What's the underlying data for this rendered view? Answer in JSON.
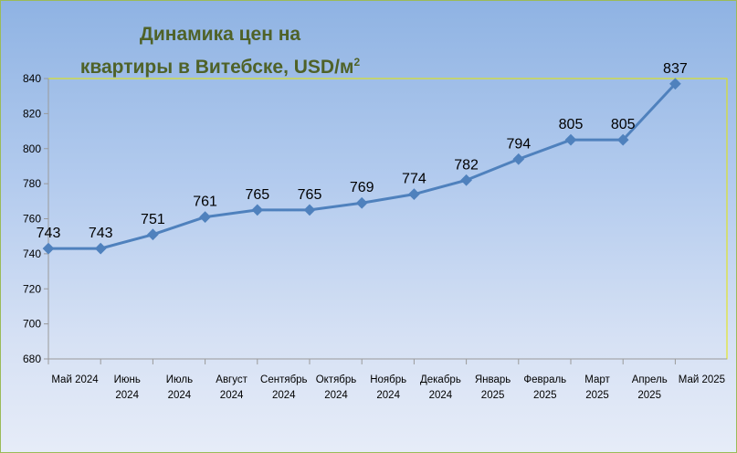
{
  "chart_data": {
    "type": "line",
    "title_line1": "Динамика цен на",
    "title_line2": "квартиры в Витебске, USD/м",
    "title_sup": "2",
    "categories": [
      [
        "Май 2024"
      ],
      [
        "Июнь",
        "2024"
      ],
      [
        "Июль",
        "2024"
      ],
      [
        "Август",
        "2024"
      ],
      [
        "Сентябрь",
        "2024"
      ],
      [
        "Октябрь",
        "2024"
      ],
      [
        "Ноябрь",
        "2024"
      ],
      [
        "Декабрь",
        "2024"
      ],
      [
        "Январь",
        "2025"
      ],
      [
        "Февраль",
        "2025"
      ],
      [
        "Март",
        "2025"
      ],
      [
        "Апрель",
        "2025"
      ],
      [
        "Май 2025"
      ]
    ],
    "values": [
      743,
      743,
      751,
      761,
      765,
      765,
      769,
      774,
      782,
      794,
      805,
      805,
      837
    ],
    "ylim": [
      680,
      840
    ],
    "yticks": [
      680,
      700,
      720,
      740,
      760,
      780,
      800,
      820,
      840
    ],
    "line_color": "#4f81bd",
    "title_color": "#4f6228",
    "grid": false
  }
}
